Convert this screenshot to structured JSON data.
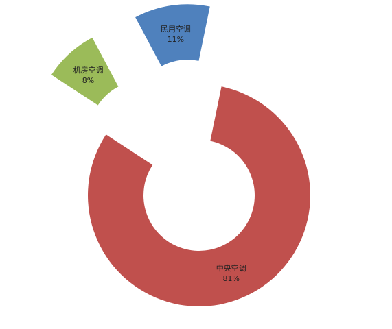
{
  "chart_data": {
    "type": "pie",
    "variant": "exploded-doughnut",
    "slices": [
      {
        "name": "民用空调",
        "value": 11,
        "label": "11%",
        "color": "#4f81bd"
      },
      {
        "name": "中央空调",
        "value": 81,
        "label": "81%",
        "color": "#c0504d"
      },
      {
        "name": "机房空调",
        "value": 8,
        "label": "8%",
        "color": "#9bbb59"
      }
    ],
    "title": "",
    "legend": "none"
  }
}
